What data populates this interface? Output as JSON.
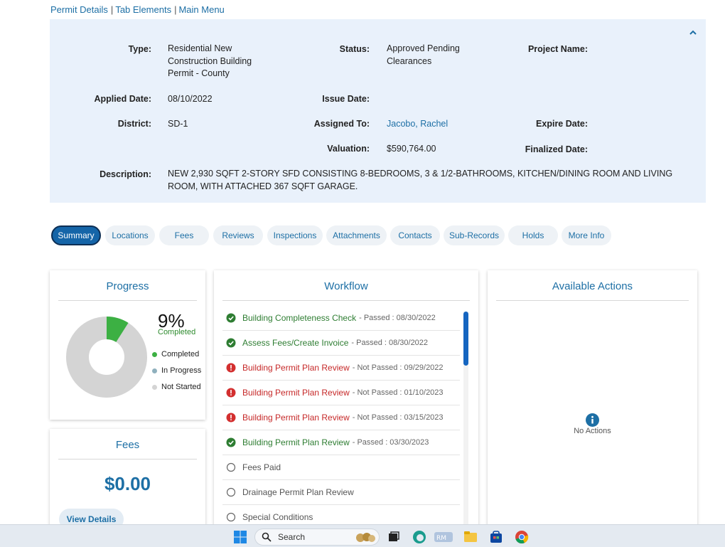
{
  "breadcrumb": [
    "Permit Details",
    "Tab Elements",
    "Main Menu"
  ],
  "details": {
    "type_label": "Type:",
    "type_value": "Residential New Construction Building Permit - County",
    "status_label": "Status:",
    "status_value": "Approved Pending Clearances",
    "project_name_label": "Project Name:",
    "applied_date_label": "Applied Date:",
    "applied_date_value": "08/10/2022",
    "issue_date_label": "Issue Date:",
    "district_label": "District:",
    "district_value": "SD-1",
    "assigned_to_label": "Assigned To:",
    "assigned_to_value": "Jacobo, Rachel",
    "expire_date_label": "Expire Date:",
    "valuation_label": "Valuation:",
    "valuation_value": "$590,764.00",
    "finalized_date_label": "Finalized Date:",
    "description_label": "Description:",
    "description_value": "NEW 2,930 SQFT 2-STORY SFD CONSISTING 8-BEDROOMS, 3 & 1/2-BATHROOMS, KITCHEN/DINING ROOM AND LIVING ROOM, WITH ATTACHED 367 SQFT GARAGE."
  },
  "tabs": [
    "Summary",
    "Locations",
    "Fees",
    "Reviews",
    "Inspections",
    "Attachments",
    "Contacts",
    "Sub-Records",
    "Holds",
    "More Info"
  ],
  "progress": {
    "title": "Progress",
    "percent_text": "9%",
    "percent_value": 9,
    "percent_label": "Completed",
    "legend": [
      "Completed",
      "In Progress",
      "Not Started"
    ],
    "colors": {
      "completed": "#3cb043",
      "in_progress": "#8fb0bd",
      "not_started": "#d4d4d4"
    }
  },
  "fees": {
    "title": "Fees",
    "amount": "$0.00",
    "button": "View Details"
  },
  "workflow": {
    "title": "Workflow",
    "items": [
      {
        "status": "passed",
        "name": "Building Completeness Check",
        "meta": "- Passed : 08/30/2022"
      },
      {
        "status": "passed",
        "name": "Assess Fees/Create Invoice",
        "meta": "- Passed : 08/30/2022"
      },
      {
        "status": "failed",
        "name": "Building Permit Plan Review",
        "meta": "- Not Passed : 09/29/2022"
      },
      {
        "status": "failed",
        "name": "Building Permit Plan Review",
        "meta": "- Not Passed : 01/10/2023"
      },
      {
        "status": "failed",
        "name": "Building Permit Plan Review",
        "meta": "- Not Passed : 03/15/2023"
      },
      {
        "status": "passed",
        "name": "Building Permit Plan Review",
        "meta": "- Passed : 03/30/2023"
      },
      {
        "status": "pending",
        "name": "Fees Paid",
        "meta": ""
      },
      {
        "status": "pending",
        "name": "Drainage Permit Plan Review",
        "meta": ""
      },
      {
        "status": "pending",
        "name": "Special Conditions",
        "meta": ""
      }
    ]
  },
  "actions": {
    "title": "Available Actions",
    "empty_text": "No Actions"
  },
  "taskbar": {
    "search_placeholder": "Search",
    "icons": [
      "windows-start-icon",
      "search-icon",
      "widgets-icon",
      "task-view-icon",
      "edge-icon",
      "app-icon",
      "file-explorer-icon",
      "store-icon",
      "chrome-icon"
    ]
  },
  "colors": {
    "accent": "#1d6fa5",
    "panel": "#e9f1fb",
    "active_tab": "#1565a8"
  }
}
